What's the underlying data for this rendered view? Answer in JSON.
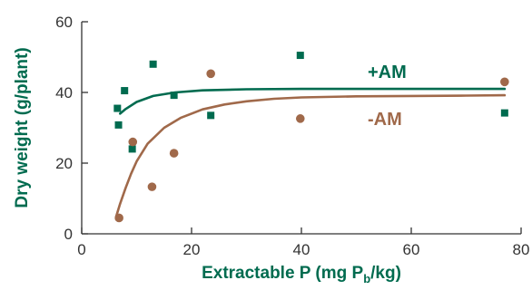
{
  "chart_data": {
    "type": "scatter",
    "xlabel": {
      "main": "Extractable P (mg P",
      "sub": "b",
      "tail": "/kg)"
    },
    "ylabel": "Dry weight (g/plant)",
    "xlim": [
      0,
      80
    ],
    "ylim": [
      0,
      60
    ],
    "x_ticks": [
      "0",
      "20",
      "40",
      "60",
      "80"
    ],
    "y_ticks": [
      "0",
      "20",
      "40",
      "60"
    ],
    "grid": false,
    "series": [
      {
        "name": "+AM",
        "color": "#006b4f",
        "marker": "square",
        "points": [
          [
            6.5,
            35.5
          ],
          [
            6.7,
            30.8
          ],
          [
            7.8,
            40.5
          ],
          [
            9.2,
            24.0
          ],
          [
            13.0,
            48.0
          ],
          [
            16.8,
            39.2
          ],
          [
            23.5,
            33.5
          ],
          [
            39.8,
            50.5
          ],
          [
            77.0,
            34.2
          ]
        ],
        "fit_curve": [
          [
            7.0,
            34.0
          ],
          [
            8,
            35.3
          ],
          [
            10,
            37.3
          ],
          [
            13,
            39.0
          ],
          [
            17,
            40.0
          ],
          [
            22,
            40.6
          ],
          [
            30,
            40.9
          ],
          [
            40,
            41.0
          ],
          [
            60,
            41.0
          ],
          [
            77.0,
            41.0
          ]
        ]
      },
      {
        "name": "-AM",
        "color": "#a0694a",
        "marker": "circle",
        "points": [
          [
            6.8,
            4.5
          ],
          [
            9.3,
            26.0
          ],
          [
            12.8,
            13.3
          ],
          [
            16.8,
            22.8
          ],
          [
            23.5,
            45.3
          ],
          [
            39.8,
            32.6
          ],
          [
            77.0,
            43.0
          ]
        ],
        "fit_curve": [
          [
            6.3,
            5.0
          ],
          [
            7,
            8.5
          ],
          [
            8,
            13.0
          ],
          [
            9,
            17.0
          ],
          [
            10,
            20.5
          ],
          [
            12,
            25.5
          ],
          [
            15,
            30.0
          ],
          [
            18,
            32.8
          ],
          [
            22,
            35.2
          ],
          [
            26,
            36.6
          ],
          [
            30,
            37.5
          ],
          [
            35,
            38.2
          ],
          [
            40,
            38.6
          ],
          [
            50,
            38.9
          ],
          [
            60,
            39.0
          ],
          [
            70,
            39.1
          ],
          [
            77.0,
            39.2
          ]
        ]
      }
    ]
  }
}
